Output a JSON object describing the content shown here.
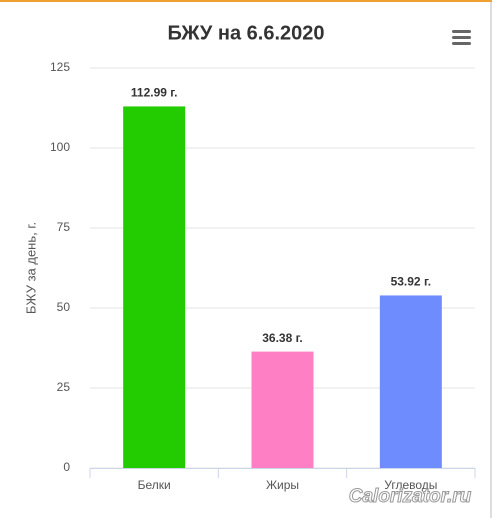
{
  "chart_data": {
    "type": "bar",
    "title": "БЖУ на 6.6.2020",
    "y_label": "БЖУ за день, г.",
    "categories": [
      "Белки",
      "Жиры",
      "Углеводы"
    ],
    "values": [
      112.99,
      36.38,
      53.92
    ],
    "value_labels": [
      "112.99 г.",
      "36.38 г.",
      "53.92 г."
    ],
    "colors": [
      "#22cc00",
      "#ff7fc4",
      "#6f8cff"
    ],
    "ylim": [
      0,
      125
    ],
    "yticks": [
      0,
      25,
      50,
      75,
      100,
      125
    ],
    "grid": true,
    "watermark": "Calorizator.ru"
  }
}
